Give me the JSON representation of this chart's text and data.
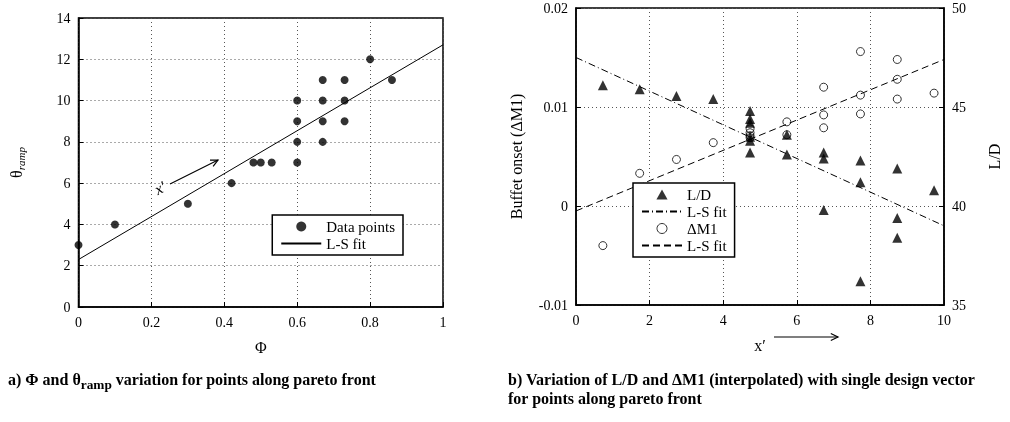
{
  "chart_data": [
    {
      "type": "scatter",
      "xlabel": "Φ",
      "ylabel": "θ$_{ramp}$",
      "xlim": [
        0,
        1
      ],
      "xticks": [
        0,
        0.2,
        0.4,
        0.6,
        0.8,
        1
      ],
      "ylim": [
        0,
        14
      ],
      "yticks": [
        0,
        2,
        4,
        6,
        8,
        10,
        12,
        14
      ],
      "grid": true,
      "legend": "bottom right",
      "series": [
        {
          "name": "Data points",
          "type": "scatter",
          "marker": "circle",
          "color": "#000000",
          "x": [
            0,
            0.1,
            0.3,
            0.42,
            0.48,
            0.5,
            0.53,
            0.6,
            0.6,
            0.6,
            0.6,
            0.67,
            0.67,
            0.67,
            0.67,
            0.73,
            0.73,
            0.73,
            0.8,
            0.86
          ],
          "values": [
            3,
            4,
            5,
            6,
            7,
            7,
            7,
            7,
            8,
            9,
            10,
            8,
            9,
            10,
            11,
            9,
            10,
            11,
            12,
            11
          ]
        },
        {
          "name": "L-S fit",
          "type": "line",
          "marker": "none",
          "line_style": "solid",
          "color": "#000000",
          "x": [
            0,
            1
          ],
          "values": [
            2.3,
            12.7
          ]
        }
      ],
      "annotations": [
        "x′",
        "a) Φ and θ$_{ramp}$ variation for points along pareto front"
      ]
    },
    {
      "type": "scatter",
      "xlabel": "x′",
      "ylabel": "Buffet onset (ΔM1)",
      "y2label": "L/D",
      "xlim": [
        0,
        10
      ],
      "xticks": [
        0,
        2,
        4,
        6,
        8,
        10
      ],
      "ylim": [
        -0.01,
        0.02
      ],
      "yticks": [
        -0.01,
        0,
        0.01,
        0.02
      ],
      "y2lim": [
        35,
        50
      ],
      "y2ticks": [
        35,
        40,
        45,
        50
      ],
      "grid": true,
      "legend": "bottom left",
      "series": [
        {
          "name": "L/D",
          "type": "scatter",
          "axis": "y2",
          "marker": "triangle",
          "color": "#000000",
          "x": [
            0.73,
            1.73,
            2.73,
            3.73,
            4.73,
            4.73,
            4.73,
            4.73,
            4.73,
            4.73,
            5.73,
            5.73,
            6.73,
            6.73,
            6.73,
            7.73,
            7.73,
            7.73,
            8.73,
            8.73,
            8.73,
            9.73
          ],
          "values": [
            46.1,
            45.9,
            45.55,
            45.4,
            44.8,
            44.4,
            44.2,
            43.5,
            43.3,
            42.7,
            43.6,
            42.6,
            42.7,
            42.4,
            39.8,
            42.3,
            41.2,
            36.2,
            41.9,
            39.4,
            38.4,
            40.8
          ]
        },
        {
          "name": "L-S fit",
          "type": "line",
          "axis": "y2",
          "marker": "none",
          "line_style": "dashdot",
          "color": "#000000",
          "x": [
            0,
            10
          ],
          "values": [
            47.5,
            39.0
          ]
        },
        {
          "name": "ΔM1",
          "type": "scatter",
          "marker": "circle-open",
          "color": "#000000",
          "x": [
            0.73,
            1.73,
            2.73,
            3.73,
            4.73,
            4.73,
            4.73,
            4.73,
            5.73,
            5.73,
            6.73,
            6.73,
            6.73,
            7.73,
            7.73,
            7.73,
            8.73,
            8.73,
            8.73,
            9.73
          ],
          "values": [
            -0.004,
            0.0033,
            0.0047,
            0.0064,
            0.0078,
            0.0074,
            0.0071,
            0.0069,
            0.0085,
            0.0072,
            0.012,
            0.0092,
            0.0079,
            0.0156,
            0.0112,
            0.0093,
            0.0148,
            0.0128,
            0.0108,
            0.0114
          ]
        },
        {
          "name": "L-S fit",
          "type": "line",
          "marker": "none",
          "line_style": "dashed",
          "color": "#000000",
          "x": [
            0,
            10
          ],
          "values": [
            -0.0005,
            0.0148
          ]
        }
      ],
      "annotations": [
        "b) Variation of L/D and ΔM1 (interpolated) with single design vector for points along  pareto front"
      ]
    }
  ]
}
